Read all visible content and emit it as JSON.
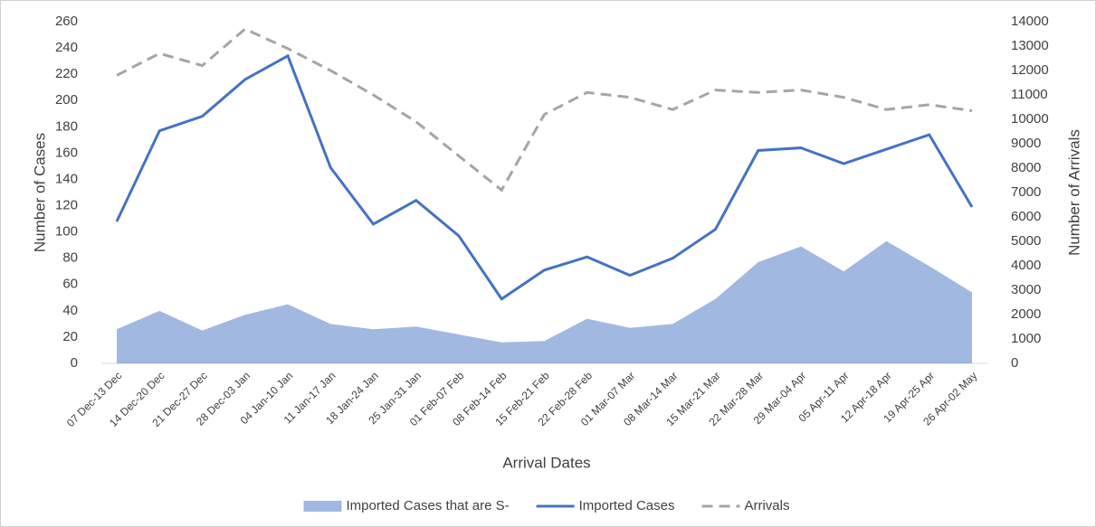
{
  "chart_data": {
    "type": "line",
    "x_label": "Arrival Dates",
    "y_label": "Number of Cases",
    "y2_label": "Number of Arrivals",
    "categories": [
      "07 Dec-13 Dec",
      "14 Dec-20 Dec",
      "21 Dec-27 Dec",
      "28 Dec-03 Jan",
      "04 Jan-10 Jan",
      "11 Jan-17 Jan",
      "18 Jan-24 Jan",
      "25 Jan-31 Jan",
      "01 Feb-07 Feb",
      "08 Feb-14 Feb",
      "15 Feb-21 Feb",
      "22 Feb-28 Feb",
      "01 Mar-07 Mar",
      "08 Mar-14 Mar",
      "15 Mar-21 Mar",
      "22 Mar-28 Mar",
      "29 Mar-04 Apr",
      "05 Apr-11 Apr",
      "12 Apr-18 Apr",
      "19 Apr-25 Apr",
      "26 Apr-02 May"
    ],
    "series": [
      {
        "name": "Imported Cases that are S-",
        "color": "#4472c4",
        "style": "area",
        "values": [
          26,
          40,
          25,
          37,
          45,
          30,
          26,
          28,
          22,
          16,
          17,
          34,
          27,
          30,
          49,
          77,
          89,
          70,
          93,
          74,
          54
        ]
      },
      {
        "name": "Imported Cases",
        "color": "#4472c4",
        "style": "solid",
        "values": [
          108,
          177,
          188,
          216,
          234,
          149,
          106,
          124,
          97,
          49,
          71,
          81,
          67,
          80,
          102,
          162,
          164,
          152,
          163,
          174,
          119
        ]
      },
      {
        "name": "Arrivals",
        "color": "#a5a5a5",
        "style": "dashed",
        "axis": "y2",
        "values": [
          11800,
          12700,
          12200,
          13700,
          12900,
          12000,
          11000,
          9900,
          8500,
          7100,
          10200,
          11100,
          10900,
          10400,
          11200,
          11100,
          11200,
          10900,
          10400,
          10600,
          10350
        ]
      }
    ],
    "ylim": [
      0,
      260
    ],
    "yticks": [
      0,
      20,
      40,
      60,
      80,
      100,
      120,
      140,
      160,
      180,
      200,
      220,
      240,
      260
    ],
    "y2lim": [
      0,
      14000
    ],
    "y2ticks": [
      0,
      1000,
      2000,
      3000,
      4000,
      5000,
      6000,
      7000,
      8000,
      9000,
      10000,
      11000,
      12000,
      13000,
      14000
    ],
    "legend": "bottom"
  }
}
